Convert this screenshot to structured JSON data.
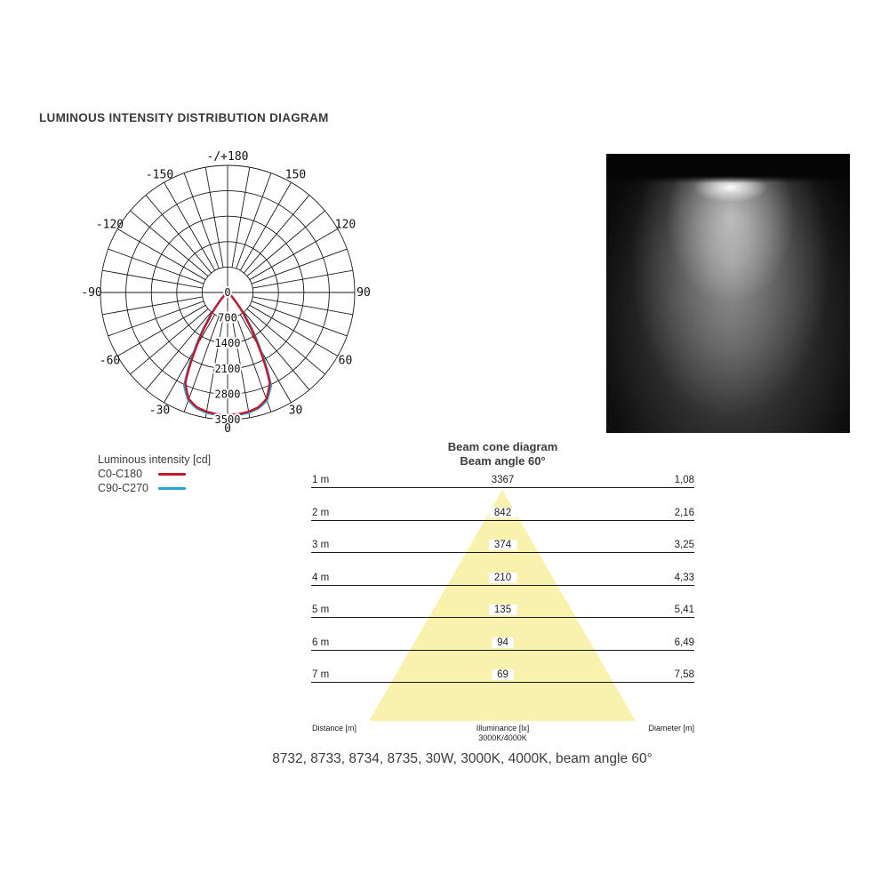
{
  "header": {
    "title": "LUMINOUS INTENSITY DISTRIBUTION DIAGRAM"
  },
  "legend": {
    "title": "Luminous intensity [cd]",
    "series": [
      {
        "label": "C0-C180",
        "color": "#c2192d"
      },
      {
        "label": "C90-C270",
        "color": "#29a3d2"
      }
    ]
  },
  "photo": {
    "description": "spotlight-beam-on-black-wall"
  },
  "beam": {
    "title": "Beam cone diagram",
    "subtitle": "Beam angle 60°",
    "footer": {
      "distance": "Distance [m]",
      "illuminance": "Illuminance [lx]",
      "cct": "3000K/4000K",
      "diameter": "Diameter [m]"
    }
  },
  "caption": "8732, 8733, 8734, 8735, 30W, 3000K, 4000K, beam angle 60°",
  "chart_data": [
    {
      "type": "line",
      "subtype": "polar-intensity",
      "title": "Luminous intensity [cd]",
      "units": "cd",
      "rmax": 3500,
      "radial_ticks": [
        0,
        700,
        1400,
        2100,
        2800,
        3500
      ],
      "minor_angle_step_deg": 10,
      "angle_labels": [
        {
          "deg": 0,
          "label": "0"
        },
        {
          "deg": 30,
          "label": "30"
        },
        {
          "deg": 60,
          "label": "60"
        },
        {
          "deg": 90,
          "label": "90"
        },
        {
          "deg": 120,
          "label": "120"
        },
        {
          "deg": 150,
          "label": "150"
        },
        {
          "deg": 180,
          "label": "-/+180"
        },
        {
          "deg": 210,
          "label": "-150"
        },
        {
          "deg": 240,
          "label": "-120"
        },
        {
          "deg": 270,
          "label": "-90"
        },
        {
          "deg": 300,
          "label": "-60"
        },
        {
          "deg": 330,
          "label": "-30"
        }
      ],
      "series": [
        {
          "name": "C90-C270",
          "color": "#29a3d2",
          "symmetric": true,
          "points": [
            [
              0,
              3390
            ],
            [
              5,
              3385
            ],
            [
              10,
              3360
            ],
            [
              15,
              3300
            ],
            [
              20,
              3160
            ],
            [
              25,
              2830
            ],
            [
              30,
              1800
            ],
            [
              35,
              1000
            ],
            [
              40,
              450
            ],
            [
              45,
              190
            ],
            [
              50,
              85
            ],
            [
              60,
              16
            ],
            [
              70,
              4
            ],
            [
              80,
              1
            ],
            [
              90,
              0
            ]
          ]
        },
        {
          "name": "C0-C180",
          "color": "#c2192d",
          "symmetric": true,
          "points": [
            [
              0,
              3367
            ],
            [
              5,
              3360
            ],
            [
              10,
              3330
            ],
            [
              15,
              3270
            ],
            [
              20,
              3120
            ],
            [
              25,
              2750
            ],
            [
              30,
              1684
            ],
            [
              35,
              900
            ],
            [
              40,
              420
            ],
            [
              45,
              180
            ],
            [
              50,
              80
            ],
            [
              60,
              15
            ],
            [
              70,
              4
            ],
            [
              80,
              1
            ],
            [
              90,
              0
            ]
          ]
        }
      ]
    },
    {
      "type": "table",
      "title": "Beam cone diagram",
      "subtitle": "Beam angle 60°",
      "beam_angle_deg": 60,
      "cone_color": "#f9f2ae",
      "columns": [
        "Distance [m]",
        "Illuminance [lx] 3000K/4000K",
        "Diameter [m]"
      ],
      "rows": [
        [
          "1 m",
          "3367",
          "1,08"
        ],
        [
          "2 m",
          "842",
          "2,16"
        ],
        [
          "3 m",
          "374",
          "3,25"
        ],
        [
          "4 m",
          "210",
          "4,33"
        ],
        [
          "5 m",
          "135",
          "5,41"
        ],
        [
          "6 m",
          "94",
          "6,49"
        ],
        [
          "7 m",
          "69",
          "7,58"
        ]
      ]
    }
  ]
}
